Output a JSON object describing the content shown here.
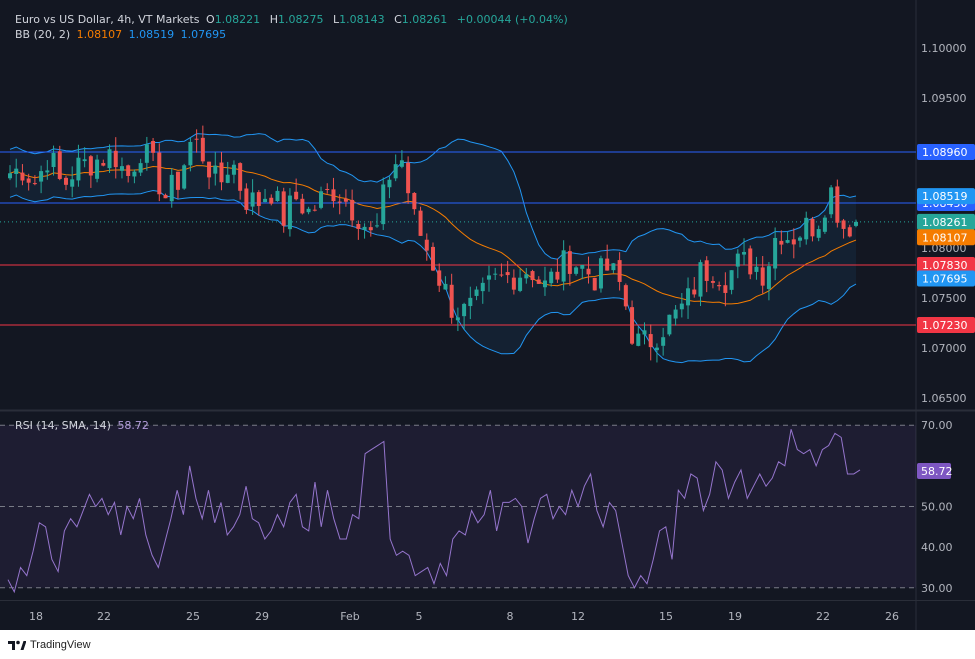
{
  "header": {
    "symbol": "Euro vs US Dollar, 4h, VT Markets",
    "ohlc": [
      {
        "k": "O",
        "v": "1.08221"
      },
      {
        "k": "H",
        "v": "1.08275"
      },
      {
        "k": "L",
        "v": "1.08143"
      },
      {
        "k": "C",
        "v": "1.08261"
      }
    ],
    "change": "+0.00044 (+0.04%)",
    "bb_label": "BB (20, 2)",
    "bb_values": [
      "1.08107",
      "1.08519",
      "1.07695"
    ],
    "rsi_label": "RSI (14, SMA, 14)",
    "rsi_value": "58.72"
  },
  "branding": {
    "name": "TradingView"
  },
  "colors": {
    "background": "#131722",
    "up": "#26a69a",
    "down": "#ef5350",
    "bb_basis": "#f57c00",
    "bb_band": "#2196f3",
    "support_line": "#f23645",
    "resistance_line": "#2962ff",
    "rsi": "#9575cd"
  },
  "chart_data": [
    {
      "type": "candlestick",
      "title": "Euro vs US Dollar, 4h, VT Markets",
      "ylim": [
        1.0638,
        1.1038
      ],
      "y_ticks": [
        {
          "v": 1.065,
          "label": "1.06500"
        },
        {
          "v": 1.07,
          "label": "1.07000"
        },
        {
          "v": 1.075,
          "label": "1.07500"
        },
        {
          "v": 1.08,
          "label": "1.08000"
        },
        {
          "v": 1.085,
          "label": "1.08500"
        },
        {
          "v": 1.09,
          "label": "1.09000"
        },
        {
          "v": 1.095,
          "label": "1.09500"
        },
        {
          "v": 1.1,
          "label": "1.10000"
        }
      ],
      "x_labels": [
        "18",
        "22",
        "25",
        "29",
        "Feb",
        "5",
        "8",
        "12",
        "15",
        "19",
        "22",
        "26"
      ],
      "ohlc_waypoints": [
        1.0875,
        1.088,
        1.0865,
        1.0895,
        1.086,
        1.088,
        1.0885,
        1.089,
        1.0895,
        1.087,
        1.09,
        1.088,
        1.085,
        1.087,
        1.091,
        1.089,
        1.086,
        1.089,
        1.085,
        1.0845,
        1.086,
        1.083,
        1.085,
        1.0835,
        1.085,
        1.086,
        1.0845,
        1.083,
        1.0805,
        1.087,
        1.0895,
        1.083,
        1.08,
        1.077,
        1.074,
        1.0735,
        1.0745,
        1.0765,
        1.077,
        1.0775,
        1.078,
        1.076,
        1.0775,
        1.079,
        1.078,
        1.077,
        1.078,
        1.076,
        1.0705,
        1.0705,
        1.072,
        1.073,
        1.0745,
        1.0775,
        1.078,
        1.077,
        1.0785,
        1.0785,
        1.0775,
        1.082,
        1.081,
        1.082,
        1.0825,
        1.086,
        1.0822,
        1.0826
      ],
      "bollinger_bands": {
        "params": "BB (20, 2)",
        "basis_last": 1.08107,
        "upper_last": 1.08519,
        "lower_last": 1.07695
      },
      "horizontal_levels": [
        {
          "value": 1.0896,
          "label": "1.08960",
          "color": "#2962ff"
        },
        {
          "value": 1.0845,
          "label": "1.08450",
          "color": "#2962ff"
        },
        {
          "value": 1.0783,
          "label": "1.07830",
          "color": "#f23645"
        },
        {
          "value": 1.0723,
          "label": "1.07230",
          "color": "#f23645"
        }
      ],
      "price_tags": [
        {
          "value": 1.08519,
          "label": "1.08519",
          "color": "#2196f3"
        },
        {
          "value": 1.08261,
          "label": "1.08261",
          "color": "#26a69a"
        },
        {
          "value": 1.08107,
          "label": "1.08107",
          "color": "#f57c00"
        },
        {
          "value": 1.07695,
          "label": "1.07695",
          "color": "#2196f3"
        }
      ]
    },
    {
      "type": "line",
      "title": "RSI (14, SMA, 14)",
      "ylim": [
        27,
        73
      ],
      "y_ticks": [
        {
          "v": 30,
          "label": "30.00"
        },
        {
          "v": 40,
          "label": "40.00"
        },
        {
          "v": 50,
          "label": "50.00"
        },
        {
          "v": 70,
          "label": "70.00"
        }
      ],
      "bands": [
        30,
        50,
        70
      ],
      "last_value": 58.72,
      "values": [
        32,
        29,
        35,
        33,
        39,
        46,
        45,
        37,
        34,
        44,
        47,
        45,
        49,
        53,
        50,
        52,
        48,
        51,
        43,
        50,
        47,
        52,
        43,
        38,
        35,
        41,
        47,
        54,
        48,
        60,
        52,
        47,
        54,
        46,
        51,
        43,
        45,
        48,
        55,
        47,
        46,
        42,
        44,
        48,
        45,
        51,
        53,
        45,
        44,
        56,
        45,
        54,
        47,
        42,
        42,
        48,
        47,
        63,
        64,
        65,
        66,
        42,
        38,
        39,
        38,
        33,
        34,
        35,
        31,
        36,
        33,
        42,
        44,
        43,
        49,
        46,
        48,
        54,
        44,
        51,
        51,
        52,
        50,
        41,
        47,
        52,
        53,
        47,
        50,
        48,
        54,
        50,
        55,
        58,
        49,
        45,
        51,
        49,
        41,
        33,
        30,
        33,
        31,
        37,
        44,
        45,
        37,
        54,
        52,
        58,
        57,
        49,
        53,
        61,
        59,
        52,
        56,
        59,
        52,
        55,
        58,
        55,
        57,
        61,
        60,
        69,
        64,
        63,
        64,
        60,
        64,
        65,
        68,
        67,
        58,
        58,
        59
      ]
    }
  ]
}
